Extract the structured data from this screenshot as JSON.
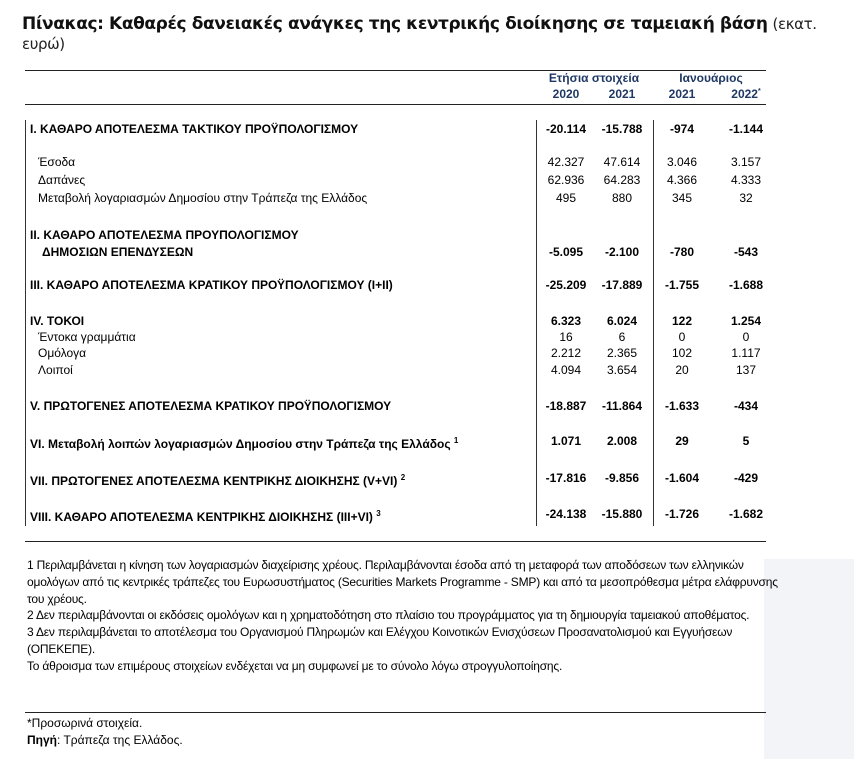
{
  "title": {
    "main": "Πίνακας: Καθαρές δανειακές ανάγκες της κεντρικής διοίκησης σε ταμειακή βάση",
    "unit": "(εκατ. ευρώ)"
  },
  "header": {
    "group_annual": "Ετήσια στοιχεία",
    "group_january": "Ιανουάριος",
    "columns": [
      "2020",
      "2021",
      "2021",
      "2022"
    ],
    "provisional_mark": "*"
  },
  "rows": [
    {
      "label": "I. ΚΑΘΑΡΟ ΑΠΟΤΕΛΕΣΜΑ  ΤΑΚΤΙΚΟΥ ΠΡΟΫΠΟΛΟΓΙΣΜΟΥ",
      "values": [
        "-20.114",
        "-15.788",
        "-974",
        "-1.144"
      ],
      "bold": true
    },
    {
      "label": "Έσοδα",
      "values": [
        "42.327",
        "47.614",
        "3.046",
        "3.157"
      ]
    },
    {
      "label": "Δαπάνες",
      "values": [
        "62.936",
        "64.283",
        "4.366",
        "4.333"
      ]
    },
    {
      "label": "Μεταβολή λογαριασμών Δημοσίου στην Τράπεζα της Ελλάδος",
      "values": [
        "495",
        "880",
        "345",
        "32"
      ]
    },
    {
      "label": "II. ΚΑΘΑΡΟ ΑΠΟΤΕΛΕΣΜΑ ΠΡΟΥΠΟΛΟΓΙΣΜΟΥ",
      "label2": "ΔΗΜΟΣΙΩΝ ΕΠΕΝΔΥΣΕΩΝ",
      "values": [
        "-5.095",
        "-2.100",
        "-780",
        "-543"
      ],
      "bold": true
    },
    {
      "label": "III. ΚΑΘΑΡΟ ΑΠΟΤΕΛΕΣΜΑ ΚΡΑΤΙΚΟΥ ΠΡΟΫΠΟΛΟΓΙΣΜΟΥ (I+II)",
      "values": [
        "-25.209",
        "-17.889",
        "-1.755",
        "-1.688"
      ],
      "bold": true
    },
    {
      "label": "IV. ΤΟΚΟΙ",
      "values": [
        "6.323",
        "6.024",
        "122",
        "1.254"
      ],
      "bold": true
    },
    {
      "label": "Έντοκα γραμμάτια",
      "values": [
        "16",
        "6",
        "0",
        "0"
      ]
    },
    {
      "label": "Ομόλογα",
      "values": [
        "2.212",
        "2.365",
        "102",
        "1.117"
      ]
    },
    {
      "label": "Λοιποί",
      "values": [
        "4.094",
        "3.654",
        "20",
        "137"
      ]
    },
    {
      "label": "V. ΠΡΩΤΟΓΕΝΕΣ ΑΠΟΤΕΛΕΣΜΑ  ΚΡΑΤΙΚΟΥ ΠΡΟΫΠΟΛΟΓΙΣΜΟΥ",
      "values": [
        "-18.887",
        "-11.864",
        "-1.633",
        "-434"
      ],
      "bold": true
    },
    {
      "label": "VI. Μεταβολή λοιπών λογαριασμών Δημοσίου στην Τράπεζα της Ελλάδος",
      "note": "1",
      "values": [
        "1.071",
        "2.008",
        "29",
        "5"
      ],
      "bold": true
    },
    {
      "label": "VII. ΠΡΩΤΟΓΕΝΕΣ ΑΠΟΤΕΛΕΣΜΑ ΚΕΝΤΡΙΚΗΣ ΔΙΟΙΚΗΣΗΣ (V+VI)",
      "note": "2",
      "values": [
        "-17.816",
        "-9.856",
        "-1.604",
        "-429"
      ],
      "bold": true
    },
    {
      "label": "VIII. ΚΑΘΑΡΟ ΑΠΟΤΕΛΕΣΜΑ ΚΕΝΤΡΙΚΗΣ ΔΙΟΙΚΗΣΗΣ (III+VI)",
      "note": "3",
      "values": [
        "-24.138",
        "-15.880",
        "-1.726",
        "-1.682"
      ],
      "bold": true
    }
  ],
  "footnotes": [
    "1 Περιλαμβάνεται η κίνηση των λογαριασμών διαχείρισης χρέους. Περιλαμβάνονται έσοδα από τη μεταφορά των αποδόσεων των ελληνικών ομολόγων από τις κεντρικές τράπεζες του Ευρωσυστήματος (Securities Markets Programme - SMP) και από τα μεσοπρόθεσμα μέτρα ελάφρυνσης του χρέους.",
    "2 Δεν περιλαμβάνονται οι εκδόσεις ομολόγων και η χρηματοδότηση στο πλαίσιο του προγράμματος για τη δημιουργία ταμειακού αποθέματος.",
    "3 Δεν περιλαμβάνεται το αποτέλεσμα του Οργανισμού Πληρωμών και Ελέγχου Κοινοτικών Ενισχύσεων Προσανατολισμού και Εγγυήσεων (ΟΠΕΚΕΠΕ).",
    "Το άθροισμα των επιμέρους στοιχείων ενδέχεται να μη συμφωνεί με το σύνολο λόγω στρογγυλοποίησης."
  ],
  "provisional_note": "*Προσωρινά στοιχεία.",
  "source": {
    "label": "Πηγή",
    "text": ": Τράπεζα της Ελλάδος."
  }
}
